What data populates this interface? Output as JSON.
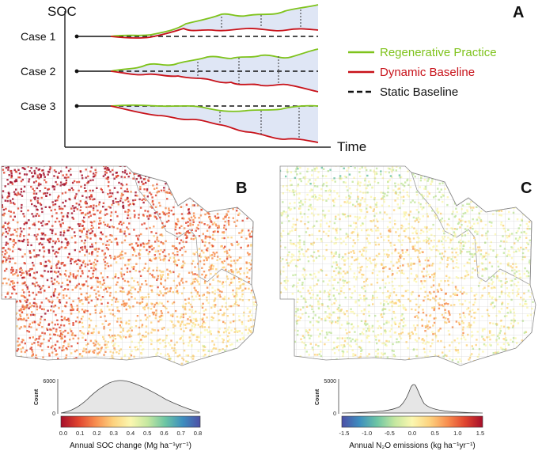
{
  "panel_a": {
    "letter": "A",
    "y_axis_label": "SOC",
    "x_axis_label": "Time",
    "cases": [
      "Case 1",
      "Case 2",
      "Case 3"
    ],
    "legend": [
      {
        "label": "Regenerative Practice",
        "color": "#7fc31c",
        "style": "solid"
      },
      {
        "label": "Dynamic Baseline",
        "color": "#c8121a",
        "style": "solid"
      },
      {
        "label": "Static Baseline",
        "color": "#111111",
        "style": "dashed"
      }
    ],
    "shading_color": "#dfe6f5"
  },
  "panel_b": {
    "letter": "B",
    "hist_y_label": "Count",
    "hist_y_ticks": [
      "6000",
      "0"
    ],
    "colorbar_ticks": [
      "0.0",
      "0.1",
      "0.2",
      "0.3",
      "0.4",
      "0.5",
      "0.6",
      "0.7",
      "0.8"
    ],
    "axis_title": "Annual SOC change (Mg ha⁻¹yr⁻¹)",
    "palette": [
      "#a50f2a",
      "#e0442f",
      "#f88e4f",
      "#fdd27e",
      "#fbf7b0",
      "#c4e7a0",
      "#6cc5a4",
      "#3d8ebf",
      "#4d4fa6"
    ]
  },
  "panel_c": {
    "letter": "C",
    "hist_y_label": "Count",
    "hist_y_ticks": [
      "5000",
      "0"
    ],
    "colorbar_ticks": [
      "-1.5",
      "-1.0",
      "-0.5",
      "0.0",
      "0.5",
      "1.0",
      "1.5"
    ],
    "axis_title": "Annual N₂O emissions (kg ha⁻¹yr⁻¹)",
    "palette": [
      "#4d4fa6",
      "#3d8ebf",
      "#6cc5a4",
      "#c4e7a0",
      "#fbf7b0",
      "#fdd27e",
      "#f88e4f",
      "#e0442f",
      "#a50f2a"
    ]
  }
}
